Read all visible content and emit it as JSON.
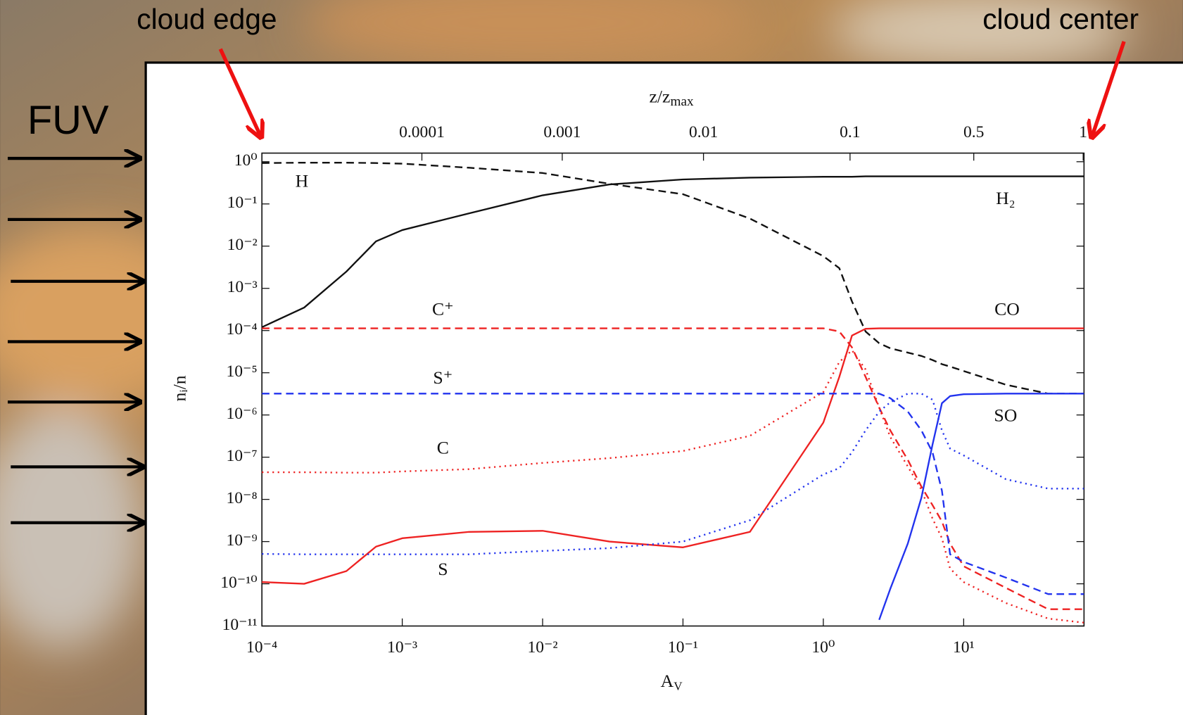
{
  "slide": {
    "left_label": "cloud edge",
    "right_label": "cloud center",
    "flux_label": "FUV"
  },
  "chart_data": {
    "type": "line",
    "xscale": "log",
    "yscale": "log",
    "x_label": {
      "base": "A",
      "sub": "V"
    },
    "y_label": "nᵢ/n",
    "x2_label": {
      "base": "z/z",
      "sub": "max"
    },
    "xlim": [
      0.0001,
      72
    ],
    "ylim": [
      1e-11,
      1.6
    ],
    "xticks": [
      {
        "value": 0.0001,
        "label": "10⁻⁴"
      },
      {
        "value": 0.001,
        "label": "10⁻³"
      },
      {
        "value": 0.01,
        "label": "10⁻²"
      },
      {
        "value": 0.1,
        "label": "10⁻¹"
      },
      {
        "value": 1,
        "label": "10⁰"
      },
      {
        "value": 10,
        "label": "10¹"
      }
    ],
    "yticks": [
      {
        "value": 1,
        "label": "10⁰"
      },
      {
        "value": 0.1,
        "label": "10⁻¹"
      },
      {
        "value": 0.01,
        "label": "10⁻²"
      },
      {
        "value": 0.001,
        "label": "10⁻³"
      },
      {
        "value": 0.0001,
        "label": "10⁻⁴"
      },
      {
        "value": 1e-05,
        "label": "10⁻⁵"
      },
      {
        "value": 1e-06,
        "label": "10⁻⁶"
      },
      {
        "value": 1e-07,
        "label": "10⁻⁷"
      },
      {
        "value": 1e-08,
        "label": "10⁻⁸"
      },
      {
        "value": 1e-09,
        "label": "10⁻⁹"
      },
      {
        "value": 1e-10,
        "label": "10⁻¹⁰"
      },
      {
        "value": 1e-11,
        "label": "10⁻¹¹"
      }
    ],
    "x2ticks": [
      {
        "value": 0.0001,
        "av": 0.00138
      },
      {
        "value": 0.001,
        "av": 0.0138
      },
      {
        "value": 0.01,
        "av": 0.14
      },
      {
        "value": 0.1,
        "av": 1.55
      },
      {
        "value": 0.5,
        "av": 11.8
      },
      {
        "value": 1,
        "av": 71
      }
    ],
    "x": [
      0.0001,
      0.0002,
      0.0004,
      0.00065,
      0.001,
      0.003,
      0.01,
      0.03,
      0.1,
      0.3,
      1,
      1.3,
      1.6,
      2,
      2.5,
      3,
      4,
      5,
      6,
      7,
      8,
      10,
      20,
      40,
      72
    ],
    "series": [
      {
        "name": "H₂",
        "color": "#111111",
        "dash": "solid",
        "values": [
          0.00012,
          0.00035,
          0.0025,
          0.013,
          0.024,
          0.06,
          0.16,
          0.29,
          0.38,
          0.42,
          0.44,
          0.44,
          0.44,
          0.45,
          0.45,
          0.45,
          0.45,
          0.45,
          0.45,
          0.45,
          0.45,
          0.45,
          0.45,
          0.45,
          0.45
        ]
      },
      {
        "name": "H",
        "color": "#111111",
        "dash": "dashed",
        "values": [
          0.93,
          0.95,
          0.95,
          0.93,
          0.9,
          0.72,
          0.54,
          0.3,
          0.17,
          0.045,
          0.0058,
          0.003,
          0.00049,
          9.5e-05,
          5e-05,
          3.8e-05,
          3e-05,
          2.5e-05,
          2e-05,
          1.6e-05,
          1.4e-05,
          1.1e-05,
          5.2e-06,
          3.2e-06,
          3.2e-06
        ]
      },
      {
        "name": "C⁺",
        "color": "#ee2222",
        "dash": "dashed",
        "values": [
          0.000113,
          0.000113,
          0.000113,
          0.000113,
          0.000113,
          0.000113,
          0.000113,
          0.000113,
          0.000113,
          0.000113,
          0.000113,
          9.5e-05,
          4e-05,
          8e-06,
          1.5e-06,
          4.3e-07,
          8.6e-08,
          2e-08,
          7.3e-09,
          3e-09,
          9e-10,
          2.6e-10,
          8e-11,
          2.5e-11,
          2.5e-11
        ]
      },
      {
        "name": "CO",
        "color": "#ee2222",
        "dash": "solid",
        "values": [
          1.1e-10,
          1e-10,
          2e-10,
          7.6e-10,
          1.2e-09,
          1.7e-09,
          1.8e-09,
          1e-09,
          7.3e-10,
          1.7e-09,
          6.6e-07,
          8e-06,
          7.6e-05,
          0.00011,
          0.000113,
          0.000113,
          0.000113,
          0.000113,
          0.000113,
          0.000113,
          0.000113,
          0.000113,
          0.000113,
          0.000113,
          0.000113
        ]
      },
      {
        "name": "C",
        "color": "#ee2222",
        "dash": "dotted",
        "values": [
          4.4e-08,
          4.4e-08,
          4.3e-08,
          4.3e-08,
          4.6e-08,
          5.2e-08,
          7.3e-08,
          9.5e-08,
          1.4e-07,
          3.2e-07,
          3.5e-06,
          1.8e-05,
          3.4e-05,
          1.2e-05,
          1.5e-06,
          3e-07,
          6e-08,
          1.7e-08,
          3.5e-09,
          1.2e-09,
          2.3e-10,
          1.1e-10,
          3.5e-11,
          1.5e-11,
          1.2e-11
        ]
      },
      {
        "name": "S⁺",
        "color": "#2233ee",
        "dash": "dashed",
        "values": [
          3.2e-06,
          3.2e-06,
          3.2e-06,
          3.2e-06,
          3.2e-06,
          3.2e-06,
          3.2e-06,
          3.2e-06,
          3.2e-06,
          3.2e-06,
          3.2e-06,
          3.2e-06,
          3.2e-06,
          3.2e-06,
          3.2e-06,
          2.5e-06,
          1.2e-06,
          4.3e-07,
          1.3e-07,
          1.6e-08,
          5e-10,
          3.3e-10,
          1.4e-10,
          5.7e-11,
          5.7e-11
        ]
      },
      {
        "name": "S",
        "color": "#2233ee",
        "dash": "dotted",
        "values": [
          5.1e-10,
          5e-10,
          5e-10,
          5e-10,
          5e-10,
          5e-10,
          6e-10,
          7e-10,
          1e-09,
          3.2e-09,
          3.9e-08,
          5.5e-08,
          1.3e-07,
          4.3e-07,
          1.2e-06,
          2e-06,
          3.2e-06,
          3.2e-06,
          2.3e-06,
          4.3e-07,
          1.6e-07,
          1.1e-07,
          3e-08,
          1.8e-08,
          1.8e-08
        ]
      },
      {
        "name": "SO",
        "color": "#2233ee",
        "dash": "solid",
        "values": [
          null,
          null,
          null,
          null,
          null,
          null,
          null,
          null,
          null,
          null,
          null,
          null,
          null,
          null,
          1.4e-11,
          7.6e-11,
          9e-10,
          1.1e-08,
          2e-07,
          1.9e-06,
          2.8e-06,
          3.1e-06,
          3.2e-06,
          3.2e-06,
          3.2e-06
        ]
      }
    ]
  }
}
